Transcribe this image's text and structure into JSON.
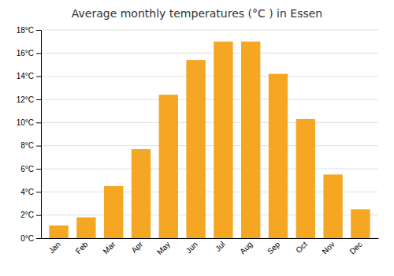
{
  "chart_data": {
    "type": "bar",
    "title": "Average monthly temperatures (°C ) in Essen",
    "categories": [
      "Jan",
      "Feb",
      "Mar",
      "Apr",
      "May",
      "Jun",
      "Jul",
      "Aug",
      "Sep",
      "Oct",
      "Nov",
      "Dec"
    ],
    "values": [
      1.1,
      1.8,
      4.5,
      7.7,
      12.4,
      15.4,
      17.0,
      17.0,
      14.2,
      10.3,
      5.5,
      2.5
    ],
    "color": "#F5A623",
    "ylim": [
      0,
      18
    ],
    "yticks": [
      {
        "value": 0,
        "label": "0°C"
      },
      {
        "value": 2,
        "label": "2°C"
      },
      {
        "value": 4,
        "label": "4°C"
      },
      {
        "value": 6,
        "label": "6°C"
      },
      {
        "value": 8,
        "label": "8°C"
      },
      {
        "value": 10,
        "label": "10°C"
      },
      {
        "value": 12,
        "label": "12°C"
      },
      {
        "value": 14,
        "label": "14°C"
      },
      {
        "value": 16,
        "label": "16°C"
      },
      {
        "value": 18,
        "label": "18°C"
      }
    ],
    "grid": true
  }
}
